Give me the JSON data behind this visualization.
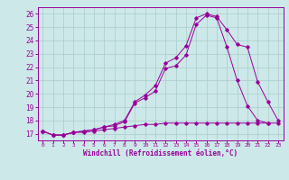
{
  "xlabel": "Windchill (Refroidissement éolien,°C)",
  "bg_color": "#cce8e8",
  "line_color": "#990099",
  "grid_color": "#aacccc",
  "xlim": [
    -0.5,
    23.5
  ],
  "ylim": [
    16.5,
    26.5
  ],
  "xticks": [
    0,
    1,
    2,
    3,
    4,
    5,
    6,
    7,
    8,
    9,
    10,
    11,
    12,
    13,
    14,
    15,
    16,
    17,
    18,
    19,
    20,
    21,
    22,
    23
  ],
  "yticks": [
    17,
    18,
    19,
    20,
    21,
    22,
    23,
    24,
    25,
    26
  ],
  "line1_x": [
    0,
    1,
    2,
    3,
    4,
    5,
    6,
    7,
    8,
    9,
    10,
    11,
    12,
    13,
    14,
    15,
    16,
    17,
    18,
    19,
    20,
    21,
    22,
    23
  ],
  "line1_y": [
    17.2,
    16.9,
    16.9,
    17.1,
    17.1,
    17.2,
    17.3,
    17.4,
    17.5,
    17.6,
    17.7,
    17.7,
    17.8,
    17.8,
    17.8,
    17.8,
    17.8,
    17.8,
    17.8,
    17.8,
    17.8,
    17.8,
    17.8,
    17.8
  ],
  "line2_x": [
    0,
    1,
    2,
    3,
    4,
    5,
    6,
    7,
    8,
    9,
    10,
    11,
    12,
    13,
    14,
    15,
    16,
    17,
    18,
    19,
    20,
    21,
    22
  ],
  "line2_y": [
    17.2,
    16.9,
    16.9,
    17.1,
    17.2,
    17.3,
    17.5,
    17.6,
    17.9,
    19.3,
    19.7,
    20.2,
    21.9,
    22.1,
    22.9,
    25.2,
    25.9,
    25.7,
    23.5,
    21.0,
    19.1,
    18.0,
    17.8
  ],
  "line3_x": [
    0,
    1,
    2,
    3,
    4,
    5,
    6,
    7,
    8,
    9,
    10,
    11,
    12,
    13,
    14,
    15,
    16,
    17,
    18,
    19,
    20,
    21,
    22,
    23
  ],
  "line3_y": [
    17.2,
    16.9,
    16.9,
    17.1,
    17.2,
    17.3,
    17.5,
    17.7,
    18.0,
    19.4,
    19.9,
    20.6,
    22.3,
    22.7,
    23.6,
    25.7,
    26.0,
    25.8,
    24.8,
    23.7,
    23.5,
    20.9,
    19.4,
    18.0
  ]
}
